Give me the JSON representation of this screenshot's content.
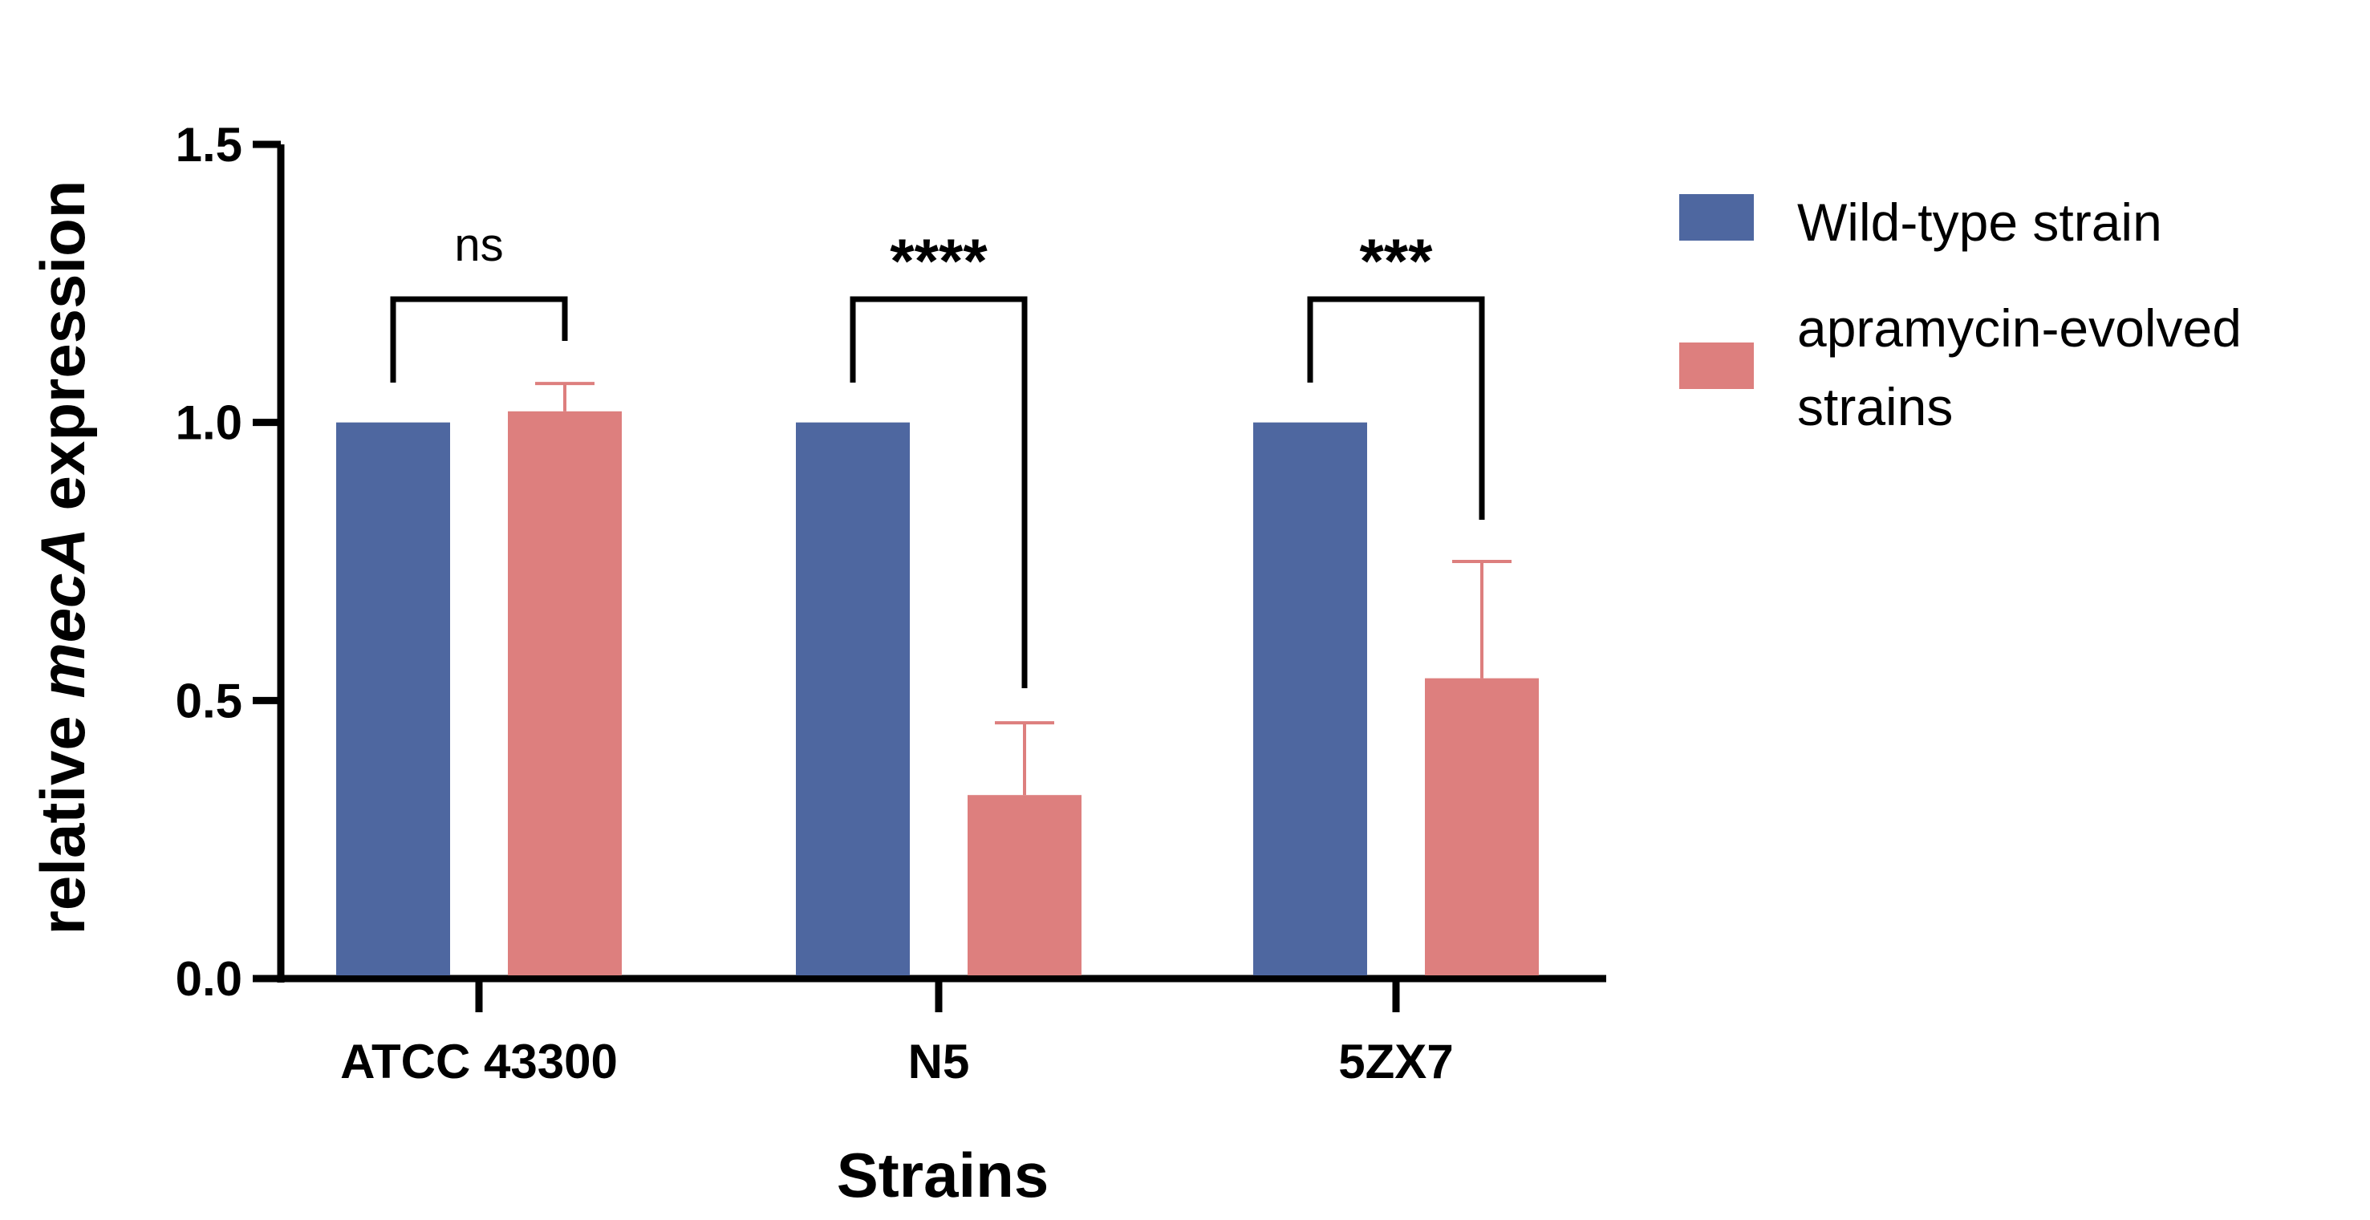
{
  "chart_data": {
    "type": "bar",
    "xlabel": "Strains",
    "ylabel_parts": [
      "relative ",
      "mecA",
      " expression"
    ],
    "ylim": [
      0,
      1.5
    ],
    "yticks": [
      "0.0",
      "0.5",
      "1.0",
      "1.5"
    ],
    "ytick_values": [
      0,
      0.5,
      1.0,
      1.5
    ],
    "categories": [
      "ATCC 43300",
      "N5",
      "5ZX7"
    ],
    "series": [
      {
        "name": "Wild-type strain",
        "color": "#4e67a0",
        "values": [
          1.0,
          1.0,
          1.0
        ],
        "errors": [
          0,
          0,
          0
        ]
      },
      {
        "name": "apramycin-evolved strains",
        "name_lines": [
          "apramycin-evolved",
          "strains"
        ],
        "color": "#dd7f7e",
        "values": [
          1.02,
          0.33,
          0.54
        ],
        "errors": [
          0.05,
          0.13,
          0.21
        ]
      }
    ],
    "significance": [
      {
        "category": "ATCC 43300",
        "label": "ns"
      },
      {
        "category": "N5",
        "label": "****"
      },
      {
        "category": "5ZX7",
        "label": "***"
      }
    ],
    "legend_position": "right"
  }
}
